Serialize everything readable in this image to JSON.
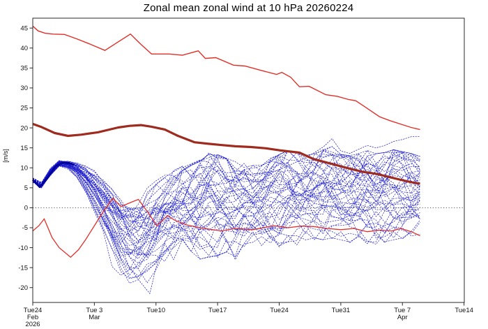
{
  "title": "Zonal mean zonal wind at 10 hPa 20260224",
  "chart_data": {
    "type": "line",
    "title": "Zonal mean zonal wind at 10 hPa 20260224",
    "xlabel": "",
    "ylabel": "[m/s]",
    "ylim": [
      -23.7,
      47.5
    ],
    "xlim_days": [
      0,
      49
    ],
    "x_start_date": "Tue Feb 24 2026",
    "grid": "zero-line-only",
    "legend": "none",
    "y_ticks": [
      45,
      40,
      35,
      30,
      25,
      20,
      15,
      10,
      5,
      0,
      -5,
      -10,
      -15,
      -20
    ],
    "x_ticks": [
      {
        "day": 0,
        "label": "Tue24",
        "sub": [
          "Feb",
          "2026"
        ]
      },
      {
        "day": 7,
        "label": "Tue 3",
        "sub": [
          "Mar"
        ]
      },
      {
        "day": 14,
        "label": "Tue10",
        "sub": []
      },
      {
        "day": 21,
        "label": "Tue17",
        "sub": []
      },
      {
        "day": 28,
        "label": "Tue24",
        "sub": []
      },
      {
        "day": 35,
        "label": "Tue31",
        "sub": []
      },
      {
        "day": 42,
        "label": "Tue 7",
        "sub": [
          "Apr"
        ]
      },
      {
        "day": 49,
        "label": "Tue14",
        "sub": []
      }
    ],
    "colors": {
      "ensemble_blue": "#1515cc",
      "analysis_navy": "#000099",
      "thin_red": "#e03028",
      "dark_red": "#9e2b1e",
      "zero_line": "#444444",
      "frame": "#2a2a2a"
    },
    "series": {
      "upper_red": {
        "name": "upper red line",
        "points": [
          [
            0,
            45.5
          ],
          [
            0.6,
            44.3
          ],
          [
            1.4,
            43.7
          ],
          [
            2.3,
            43.5
          ],
          [
            3.6,
            43.4
          ],
          [
            5,
            42.3
          ],
          [
            6.6,
            40.9
          ],
          [
            8.2,
            39.4
          ],
          [
            9.6,
            41.4
          ],
          [
            11.1,
            43.5
          ],
          [
            12.3,
            40.9
          ],
          [
            13.5,
            38.5
          ],
          [
            15.5,
            38.5
          ],
          [
            17,
            38.2
          ],
          [
            18.8,
            39.3
          ],
          [
            19.6,
            37.4
          ],
          [
            20.8,
            37.6
          ],
          [
            22.8,
            35.7
          ],
          [
            24.1,
            35.5
          ],
          [
            26.1,
            34.3
          ],
          [
            27.7,
            33.4
          ],
          [
            28.3,
            33.9
          ],
          [
            29.3,
            32.7
          ],
          [
            30.3,
            30.3
          ],
          [
            31.4,
            30.4
          ],
          [
            33.3,
            28.3
          ],
          [
            34.6,
            27.9
          ],
          [
            35.9,
            27.1
          ],
          [
            36.7,
            26.8
          ],
          [
            37.8,
            25.2
          ],
          [
            39.4,
            22.8
          ],
          [
            40.6,
            21.8
          ],
          [
            42,
            20.8
          ],
          [
            43,
            20.1
          ],
          [
            44,
            19.6
          ]
        ]
      },
      "dark_red_thick": {
        "name": "dark red thick line",
        "points": [
          [
            0,
            21.0
          ],
          [
            1,
            20.2
          ],
          [
            2.5,
            18.7
          ],
          [
            4,
            18.0
          ],
          [
            5.5,
            18.3
          ],
          [
            7.4,
            18.9
          ],
          [
            9.7,
            20.1
          ],
          [
            11,
            20.5
          ],
          [
            12.3,
            20.7
          ],
          [
            13.5,
            20.3
          ],
          [
            15,
            19.6
          ],
          [
            16.5,
            18.0
          ],
          [
            18.4,
            16.4
          ],
          [
            20,
            16.0
          ],
          [
            21.5,
            15.7
          ],
          [
            23,
            15.4
          ],
          [
            24.8,
            15.2
          ],
          [
            26.4,
            14.9
          ],
          [
            28,
            14.4
          ],
          [
            30.3,
            13.8
          ],
          [
            31.9,
            12.2
          ],
          [
            34.3,
            10.8
          ],
          [
            36,
            9.8
          ],
          [
            37.5,
            9.0
          ],
          [
            39,
            8.5
          ],
          [
            40.5,
            7.7
          ],
          [
            42,
            6.9
          ],
          [
            43,
            6.4
          ],
          [
            44,
            6.0
          ]
        ]
      },
      "lower_red": {
        "name": "lower red line",
        "points": [
          [
            0,
            -5.8
          ],
          [
            0.7,
            -4.5
          ],
          [
            1.3,
            -2.8
          ],
          [
            2.2,
            -7.5
          ],
          [
            3,
            -10
          ],
          [
            4.3,
            -12.4
          ],
          [
            5.2,
            -10.5
          ],
          [
            6,
            -8
          ],
          [
            7,
            -4.5
          ],
          [
            8,
            -1
          ],
          [
            9.1,
            2.4
          ],
          [
            10,
            0.3
          ],
          [
            11,
            1.2
          ],
          [
            12,
            2.1
          ],
          [
            13.2,
            -1.5
          ],
          [
            14.1,
            -4.5
          ],
          [
            15.3,
            -2.0
          ],
          [
            16.1,
            -3.1
          ],
          [
            17.5,
            -4.3
          ],
          [
            19,
            -5.0
          ],
          [
            21.4,
            -5.8
          ],
          [
            23,
            -5.2
          ],
          [
            25,
            -5.5
          ],
          [
            27.4,
            -4.5
          ],
          [
            29,
            -5.0
          ],
          [
            30.5,
            -4.6
          ],
          [
            31.9,
            -4.7
          ],
          [
            33.5,
            -5.2
          ],
          [
            35,
            -5.5
          ],
          [
            36.5,
            -5.2
          ],
          [
            38,
            -6.0
          ],
          [
            39.5,
            -5.6
          ],
          [
            40.8,
            -5.8
          ],
          [
            41.8,
            -5.2
          ],
          [
            43,
            -6.0
          ],
          [
            44,
            -7.0
          ]
        ]
      },
      "analysis_blue": {
        "name": "thick dark blue start segment",
        "points": [
          [
            0,
            7.0
          ],
          [
            0.8,
            5.2
          ],
          [
            1.7,
            7.6
          ],
          [
            2.6,
            10.4
          ],
          [
            3.4,
            11.3
          ],
          [
            4.1,
            11.2
          ],
          [
            4.7,
            10.8
          ]
        ]
      },
      "ensemble": {
        "name": "ensemble members",
        "n_members": 48,
        "forecast_days": 44,
        "days": "index 0..44",
        "envelope_min": [
          6.4,
          4.8,
          8.0,
          10.4,
          9.8,
          8.4,
          4.8,
          0.8,
          -4.5,
          -9.5,
          -15.5,
          -20.0,
          -19.0,
          -19.5,
          -16.0,
          -14.5,
          -13.5,
          -13.0,
          -13.0,
          -13.5,
          -12.8,
          -12.5,
          -11.5,
          -13.0,
          -11.0,
          -10.5,
          -10.0,
          -9.5,
          -10.0,
          -9.0,
          -9.5,
          -8.5,
          -8.0,
          -8.5,
          -8.0,
          -8.5,
          -9.0,
          -9.5,
          -9.0,
          -9.6,
          -9.0,
          -8.5,
          -8.0,
          -7.5,
          -7.0
        ],
        "envelope_max": [
          7.5,
          6.2,
          9.8,
          11.9,
          11.6,
          11.0,
          9.8,
          8.0,
          5.5,
          2.5,
          1.0,
          0.0,
          1.5,
          3.5,
          5.5,
          7.5,
          9.0,
          10.5,
          11.5,
          12.5,
          14.3,
          13.8,
          12.8,
          12.0,
          11.8,
          11.0,
          11.8,
          12.8,
          13.8,
          14.8,
          14.3,
          13.5,
          14.0,
          15.0,
          15.8,
          13.8,
          13.5,
          14.0,
          14.8,
          14.0,
          14.3,
          15.0,
          14.5,
          14.0,
          13.3
        ],
        "median": [
          7.0,
          5.5,
          8.9,
          11.2,
          10.8,
          9.9,
          7.4,
          4.4,
          0.5,
          -3.5,
          -7.5,
          -10.5,
          -9.0,
          -7.0,
          -5.0,
          -3.2,
          -1.8,
          -0.4,
          0.8,
          2.0,
          3.0,
          2.6,
          2.0,
          1.5,
          1.2,
          1.0,
          1.5,
          2.0,
          2.5,
          3.0,
          3.0,
          2.8,
          3.0,
          3.2,
          3.5,
          2.8,
          2.2,
          2.0,
          2.2,
          2.0,
          2.3,
          2.6,
          2.8,
          2.6,
          2.5
        ],
        "outlier_high_member": [
          [
            28,
            9.5
          ],
          [
            29,
            10.5
          ],
          [
            30,
            11.5
          ],
          [
            31,
            12.5
          ],
          [
            32,
            13.8
          ],
          [
            33,
            15.2
          ],
          [
            34,
            17.3
          ],
          [
            35,
            14.2
          ],
          [
            36,
            13.6
          ],
          [
            37,
            14.6
          ],
          [
            38,
            15.6
          ],
          [
            39,
            15.0
          ],
          [
            40,
            15.6
          ],
          [
            41,
            16.6
          ],
          [
            42,
            17.1
          ],
          [
            43,
            17.8
          ],
          [
            44,
            17.8
          ]
        ],
        "outlier_low_member": [
          [
            8,
            -2
          ],
          [
            9,
            -7
          ],
          [
            10,
            -11
          ],
          [
            11,
            -15
          ],
          [
            12,
            -18
          ],
          [
            13.3,
            -21.5
          ],
          [
            14,
            -15
          ],
          [
            15,
            -9
          ],
          [
            16,
            -13
          ],
          [
            17,
            -8
          ],
          [
            18,
            -11
          ],
          [
            19,
            -6
          ],
          [
            20,
            -9
          ],
          [
            21,
            -12.5
          ],
          [
            22,
            -8
          ],
          [
            23,
            -13
          ],
          [
            24,
            -9
          ],
          [
            25,
            -6
          ],
          [
            26,
            -9.5
          ],
          [
            27,
            -7
          ],
          [
            28,
            -9.8
          ],
          [
            29,
            -7
          ],
          [
            30,
            -9.3
          ],
          [
            31,
            -6
          ],
          [
            32,
            -8
          ],
          [
            33,
            -5
          ],
          [
            34,
            -7.8
          ],
          [
            35,
            -6
          ],
          [
            36,
            -8.8
          ],
          [
            37,
            -7
          ],
          [
            38,
            -9
          ],
          [
            39,
            -6
          ],
          [
            40,
            -8.8
          ],
          [
            41,
            -6
          ],
          [
            42,
            -7.8
          ],
          [
            43,
            -6
          ],
          [
            44,
            -7
          ]
        ]
      }
    }
  }
}
